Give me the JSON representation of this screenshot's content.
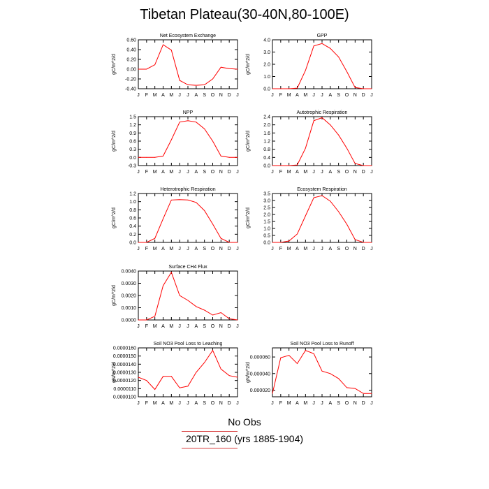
{
  "figure": {
    "title": "Tibetan Plateau(30-40N,80-100E)",
    "legend": [
      {
        "label": "No Obs",
        "color": "#d83c3c"
      },
      {
        "label": "20TR_160 (yrs 1885-1904)",
        "color": "#d83c3c"
      }
    ]
  },
  "colors": {
    "series": "#ff0000",
    "axis": "#000000",
    "legend_rule": "#d83c3c"
  },
  "chart_data": [
    {
      "type": "line",
      "title": "Net Ecosystem Exchange",
      "ylabel": "gC/m^2/d",
      "x": [
        "J",
        "F",
        "M",
        "A",
        "M",
        "J",
        "J",
        "A",
        "S",
        "O",
        "N",
        "D",
        "J"
      ],
      "ylim": [
        -0.4,
        0.6
      ],
      "yticks": [
        "-0.40",
        "-0.20",
        "0.00",
        "0.20",
        "0.40",
        "0.60"
      ],
      "ytick_values": [
        -0.4,
        -0.2,
        0.0,
        0.2,
        0.4,
        0.6
      ],
      "values": [
        0.0,
        0.0,
        0.09,
        0.5,
        0.39,
        -0.23,
        -0.32,
        -0.33,
        -0.32,
        -0.2,
        0.04,
        0.01,
        0.0
      ]
    },
    {
      "type": "line",
      "title": "GPP",
      "ylabel": "gC/m^2/d",
      "x": [
        "J",
        "F",
        "M",
        "A",
        "M",
        "J",
        "J",
        "A",
        "S",
        "O",
        "N",
        "D",
        "J"
      ],
      "ylim": [
        0,
        4
      ],
      "yticks": [
        "0.0",
        "1.0",
        "2.0",
        "3.0",
        "4.0"
      ],
      "ytick_values": [
        0,
        1,
        2,
        3,
        4
      ],
      "values": [
        0.0,
        0.0,
        0.0,
        0.05,
        1.5,
        3.5,
        3.7,
        3.3,
        2.6,
        1.4,
        0.1,
        0.0,
        0.0
      ]
    },
    {
      "type": "line",
      "title": "NPP",
      "ylabel": "gC/m^2/d",
      "x": [
        "J",
        "F",
        "M",
        "A",
        "M",
        "J",
        "J",
        "A",
        "S",
        "O",
        "N",
        "D",
        "J"
      ],
      "ylim": [
        -0.3,
        1.5
      ],
      "yticks": [
        "-0.3",
        "0.0",
        "0.3",
        "0.6",
        "0.9",
        "1.2",
        "1.5"
      ],
      "ytick_values": [
        -0.3,
        0.0,
        0.3,
        0.6,
        0.9,
        1.2,
        1.5
      ],
      "values": [
        0.0,
        0.0,
        0.0,
        0.05,
        0.65,
        1.3,
        1.35,
        1.3,
        1.05,
        0.6,
        0.05,
        0.0,
        0.0
      ]
    },
    {
      "type": "line",
      "title": "Autotrophic Respiration",
      "ylabel": "gC/m^2/d",
      "x": [
        "J",
        "F",
        "M",
        "A",
        "M",
        "J",
        "J",
        "A",
        "S",
        "O",
        "N",
        "D",
        "J"
      ],
      "ylim": [
        0,
        2.4
      ],
      "yticks": [
        "0.0",
        "0.4",
        "0.8",
        "1.2",
        "1.6",
        "2.0",
        "2.4"
      ],
      "ytick_values": [
        0,
        0.4,
        0.8,
        1.2,
        1.6,
        2.0,
        2.4
      ],
      "values": [
        0.0,
        0.0,
        0.0,
        0.03,
        0.85,
        2.2,
        2.35,
        2.0,
        1.5,
        0.85,
        0.1,
        0.0,
        0.0
      ]
    },
    {
      "type": "line",
      "title": "Heterotrophic Respiration",
      "ylabel": "gC/m^2/d",
      "x": [
        "J",
        "F",
        "M",
        "A",
        "M",
        "J",
        "J",
        "A",
        "S",
        "O",
        "N",
        "D",
        "J"
      ],
      "ylim": [
        0,
        1.2
      ],
      "yticks": [
        "0.0",
        "0.2",
        "0.4",
        "0.6",
        "0.8",
        "1.0",
        "1.2"
      ],
      "ytick_values": [
        0,
        0.2,
        0.4,
        0.6,
        0.8,
        1.0,
        1.2
      ],
      "values": [
        0.0,
        0.0,
        0.1,
        0.58,
        1.04,
        1.05,
        1.04,
        0.98,
        0.78,
        0.45,
        0.1,
        0.0,
        0.0
      ]
    },
    {
      "type": "line",
      "title": "Ecosystem Respiration",
      "ylabel": "gC/m^2/d",
      "x": [
        "J",
        "F",
        "M",
        "A",
        "M",
        "J",
        "J",
        "A",
        "S",
        "O",
        "N",
        "D",
        "J"
      ],
      "ylim": [
        0,
        3.5
      ],
      "yticks": [
        "0.0",
        "0.5",
        "1.0",
        "1.5",
        "2.0",
        "2.5",
        "3.0",
        "3.5"
      ],
      "ytick_values": [
        0,
        0.5,
        1.0,
        1.5,
        2.0,
        2.5,
        3.0,
        3.5
      ],
      "values": [
        0.0,
        0.0,
        0.1,
        0.6,
        1.9,
        3.2,
        3.35,
        2.95,
        2.2,
        1.3,
        0.2,
        0.0,
        0.0
      ]
    },
    {
      "type": "line",
      "title": "Surface CH4 Flux",
      "ylabel": "gC/m^2/d",
      "x": [
        "J",
        "F",
        "M",
        "A",
        "M",
        "J",
        "J",
        "A",
        "S",
        "O",
        "N",
        "D",
        "J"
      ],
      "ylim": [
        0,
        0.004
      ],
      "yticks": [
        "0.0000",
        "0.0010",
        "0.0020",
        "0.0030",
        "0.0040"
      ],
      "ytick_values": [
        0,
        0.001,
        0.002,
        0.003,
        0.004
      ],
      "values": [
        0.0,
        0.0,
        0.0003,
        0.0028,
        0.0039,
        0.002,
        0.0016,
        0.0011,
        0.0008,
        0.0004,
        0.0006,
        0.0001,
        0.0
      ]
    },
    {
      "type": "line",
      "title": "Soil NO3 Pool Loss to Leaching",
      "ylabel": "gN/m^2/d",
      "x": [
        "J",
        "F",
        "M",
        "A",
        "M",
        "J",
        "J",
        "A",
        "S",
        "O",
        "N",
        "D",
        "J"
      ],
      "ylim": [
        1e-05,
        1.6e-05
      ],
      "yticks": [
        "0.0000100",
        "0.0000110",
        "0.0000120",
        "0.0000130",
        "0.0000140",
        "0.0000150",
        "0.0000160"
      ],
      "ytick_values": [
        1e-05,
        1.1e-05,
        1.2e-05,
        1.3e-05,
        1.4e-05,
        1.5e-05,
        1.6e-05
      ],
      "values": [
        1.24e-05,
        1.2e-05,
        1.09e-05,
        1.25e-05,
        1.25e-05,
        1.11e-05,
        1.13e-05,
        1.3e-05,
        1.42e-05,
        1.57e-05,
        1.34e-05,
        1.26e-05,
        1.24e-05
      ]
    },
    {
      "type": "line",
      "title": "Soil NO3 Pool Loss to Runoff",
      "ylabel": "gN/m^2/d",
      "x": [
        "J",
        "F",
        "M",
        "A",
        "M",
        "J",
        "J",
        "A",
        "S",
        "O",
        "N",
        "D",
        "J"
      ],
      "ylim": [
        1.2e-05,
        7.1e-05
      ],
      "yticks": [
        "0.000020",
        "0.000040",
        "0.000060"
      ],
      "ytick_values": [
        2e-05,
        4e-05,
        6e-05
      ],
      "values": [
        1.6e-05,
        5.9e-05,
        6.2e-05,
        5.2e-05,
        6.8e-05,
        6.4e-05,
        4.3e-05,
        4e-05,
        3.4e-05,
        2.3e-05,
        2.2e-05,
        1.6e-05,
        1.6e-05
      ]
    }
  ]
}
